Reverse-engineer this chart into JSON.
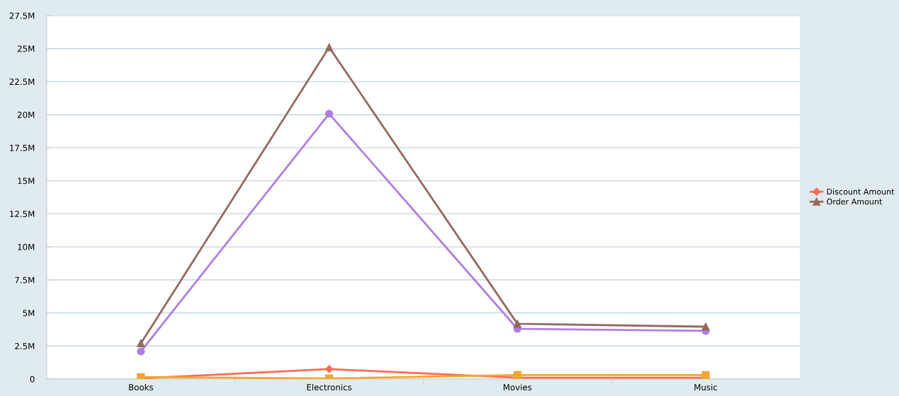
{
  "chart_data": {
    "type": "line",
    "categories": [
      "Books",
      "Electronics",
      "Movies",
      "Music"
    ],
    "series": [
      {
        "color": "#b07ee0",
        "marker": "circle",
        "values": [
          2.09,
          20.07,
          3.8,
          3.64
        ]
      },
      {
        "name": "Discount Amount",
        "color": "#ff6b55",
        "marker": "diamond",
        "values": [
          0.05,
          0.75,
          0.1,
          0.1
        ]
      },
      {
        "name": "Order Amount",
        "color": "#946a5f",
        "marker": "triangle",
        "values": [
          2.7,
          25.1,
          4.18,
          3.96
        ]
      },
      {
        "color": "#f7a52f",
        "marker": "square",
        "values": [
          0.15,
          0.05,
          0.3,
          0.3
        ]
      }
    ],
    "ylim": [
      0,
      27.5
    ],
    "yticks": [
      0,
      {
        "value": 2.5,
        "label": "2.5M"
      },
      {
        "value": 5,
        "label": "5M"
      },
      {
        "value": 7.5,
        "label": "7.5M"
      },
      {
        "value": 10,
        "label": "10M"
      },
      {
        "value": 12.5,
        "label": "12.5M"
      },
      {
        "value": 15,
        "label": "15M"
      },
      {
        "value": 17.5,
        "label": "17.5M"
      },
      {
        "value": 20,
        "label": "20M"
      },
      {
        "value": 22.5,
        "label": "22.5M"
      },
      {
        "value": 25,
        "label": "25M"
      },
      {
        "value": 27.5,
        "label": "27.5M"
      }
    ],
    "grid": "y",
    "legend": "right",
    "line_style": "solid"
  }
}
